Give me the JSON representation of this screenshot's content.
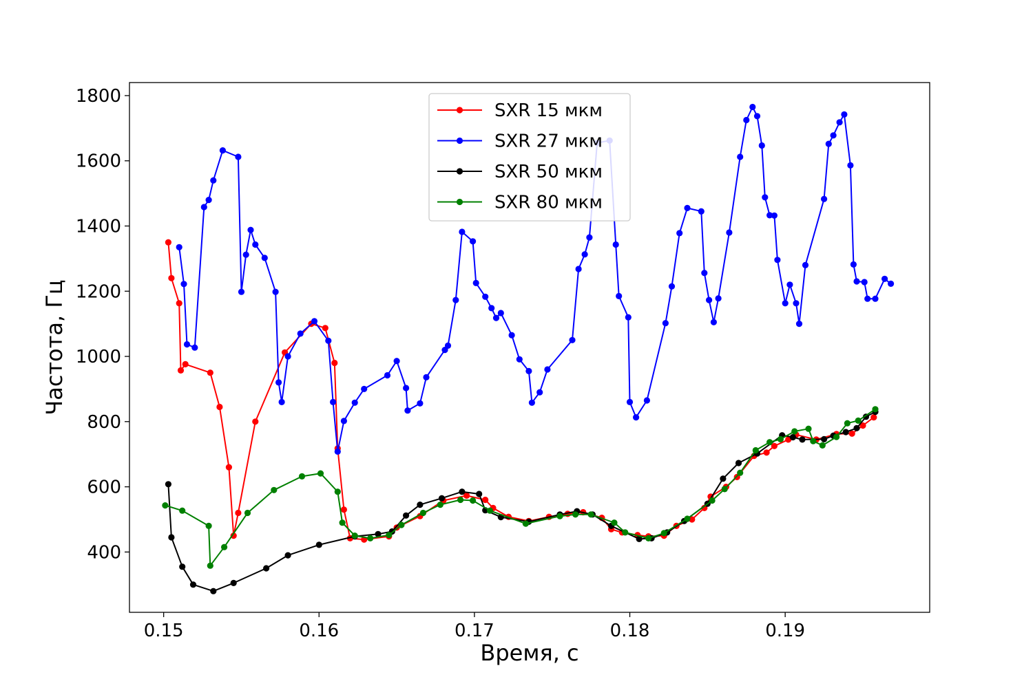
{
  "chart_data": {
    "type": "line",
    "xlabel": "Время, с",
    "ylabel": "Частота, Гц",
    "xlim": [
      0.1478,
      0.1993
    ],
    "ylim": [
      215,
      1840
    ],
    "xticks": [
      "0.15",
      "0.16",
      "0.17",
      "0.18",
      "0.19"
    ],
    "xtick_values": [
      0.15,
      0.16,
      0.17,
      0.18,
      0.19
    ],
    "yticks": [
      "400",
      "600",
      "800",
      "1000",
      "1200",
      "1400",
      "1600",
      "1800"
    ],
    "ytick_values": [
      400,
      600,
      800,
      1000,
      1200,
      1400,
      1600,
      1800
    ],
    "grid": false,
    "legend_position": "top-center",
    "series": [
      {
        "name": "SXR 15 мкм",
        "color": "#ff0000",
        "points": [
          [
            0.1503,
            1350
          ],
          [
            0.1505,
            1240
          ],
          [
            0.151,
            1163
          ],
          [
            0.1511,
            957
          ],
          [
            0.1514,
            976
          ],
          [
            0.153,
            950
          ],
          [
            0.1536,
            845
          ],
          [
            0.1542,
            660
          ],
          [
            0.1545,
            450
          ],
          [
            0.1548,
            520
          ],
          [
            0.1559,
            800
          ],
          [
            0.1578,
            1012
          ],
          [
            0.1595,
            1100
          ],
          [
            0.1604,
            1087
          ],
          [
            0.161,
            980
          ],
          [
            0.1612,
            718
          ],
          [
            0.1616,
            530
          ],
          [
            0.162,
            442
          ],
          [
            0.1629,
            438
          ],
          [
            0.1645,
            448
          ],
          [
            0.165,
            475
          ],
          [
            0.1665,
            510
          ],
          [
            0.168,
            558
          ],
          [
            0.1695,
            573
          ],
          [
            0.1707,
            560
          ],
          [
            0.1712,
            535
          ],
          [
            0.1722,
            508
          ],
          [
            0.1735,
            495
          ],
          [
            0.1748,
            508
          ],
          [
            0.176,
            517
          ],
          [
            0.177,
            522
          ],
          [
            0.1782,
            505
          ],
          [
            0.1788,
            470
          ],
          [
            0.1795,
            460
          ],
          [
            0.1805,
            452
          ],
          [
            0.1812,
            448
          ],
          [
            0.1822,
            450
          ],
          [
            0.183,
            480
          ],
          [
            0.184,
            500
          ],
          [
            0.1848,
            535
          ],
          [
            0.1852,
            570
          ],
          [
            0.1862,
            600
          ],
          [
            0.1869,
            630
          ],
          [
            0.188,
            695
          ],
          [
            0.1888,
            705
          ],
          [
            0.1893,
            725
          ],
          [
            0.1902,
            745
          ],
          [
            0.1907,
            760
          ],
          [
            0.192,
            745
          ],
          [
            0.1933,
            762
          ],
          [
            0.1943,
            763
          ],
          [
            0.195,
            788
          ],
          [
            0.1957,
            813
          ]
        ]
      },
      {
        "name": "SXR 27 мкм",
        "color": "#0000ff",
        "points": [
          [
            0.151,
            1335
          ],
          [
            0.1513,
            1222
          ],
          [
            0.1515,
            1037
          ],
          [
            0.152,
            1027
          ],
          [
            0.1526,
            1458
          ],
          [
            0.1529,
            1480
          ],
          [
            0.1532,
            1540
          ],
          [
            0.1538,
            1632
          ],
          [
            0.1548,
            1612
          ],
          [
            0.155,
            1198
          ],
          [
            0.1553,
            1312
          ],
          [
            0.1556,
            1388
          ],
          [
            0.1559,
            1343
          ],
          [
            0.1565,
            1302
          ],
          [
            0.1572,
            1198
          ],
          [
            0.1574,
            920
          ],
          [
            0.1576,
            860
          ],
          [
            0.158,
            1000
          ],
          [
            0.1588,
            1070
          ],
          [
            0.1597,
            1108
          ],
          [
            0.1606,
            1048
          ],
          [
            0.1609,
            860
          ],
          [
            0.1612,
            708
          ],
          [
            0.1616,
            802
          ],
          [
            0.1623,
            858
          ],
          [
            0.1629,
            900
          ],
          [
            0.1644,
            942
          ],
          [
            0.165,
            986
          ],
          [
            0.1656,
            903
          ],
          [
            0.1657,
            834
          ],
          [
            0.1665,
            856
          ],
          [
            0.1669,
            936
          ],
          [
            0.1681,
            1020
          ],
          [
            0.1683,
            1033
          ],
          [
            0.1688,
            1173
          ],
          [
            0.1692,
            1382
          ],
          [
            0.1699,
            1353
          ],
          [
            0.1701,
            1225
          ],
          [
            0.1707,
            1183
          ],
          [
            0.1711,
            1148
          ],
          [
            0.1714,
            1118
          ],
          [
            0.1717,
            1133
          ],
          [
            0.1724,
            1065
          ],
          [
            0.1729,
            991
          ],
          [
            0.1735,
            955
          ],
          [
            0.1737,
            858
          ],
          [
            0.1742,
            890
          ],
          [
            0.1747,
            960
          ],
          [
            0.1763,
            1050
          ],
          [
            0.1767,
            1268
          ],
          [
            0.1771,
            1313
          ],
          [
            0.1774,
            1365
          ],
          [
            0.1779,
            1655
          ],
          [
            0.1787,
            1662
          ],
          [
            0.1791,
            1343
          ],
          [
            0.1793,
            1185
          ],
          [
            0.1799,
            1120
          ],
          [
            0.18,
            860
          ],
          [
            0.1804,
            813
          ],
          [
            0.1811,
            865
          ],
          [
            0.1823,
            1102
          ],
          [
            0.1827,
            1215
          ],
          [
            0.1832,
            1378
          ],
          [
            0.1837,
            1455
          ],
          [
            0.1846,
            1445
          ],
          [
            0.1848,
            1256
          ],
          [
            0.1851,
            1173
          ],
          [
            0.1854,
            1105
          ],
          [
            0.1857,
            1178
          ],
          [
            0.1864,
            1380
          ],
          [
            0.1871,
            1612
          ],
          [
            0.1875,
            1725
          ],
          [
            0.1879,
            1765
          ],
          [
            0.1882,
            1737
          ],
          [
            0.1885,
            1647
          ],
          [
            0.1887,
            1488
          ],
          [
            0.189,
            1433
          ],
          [
            0.1893,
            1432
          ],
          [
            0.1895,
            1296
          ],
          [
            0.19,
            1163
          ],
          [
            0.1903,
            1220
          ],
          [
            0.1907,
            1163
          ],
          [
            0.1909,
            1100
          ],
          [
            0.1913,
            1280
          ],
          [
            0.1925,
            1483
          ],
          [
            0.1928,
            1652
          ],
          [
            0.1931,
            1678
          ],
          [
            0.1935,
            1718
          ],
          [
            0.1938,
            1742
          ],
          [
            0.1942,
            1586
          ],
          [
            0.1944,
            1282
          ],
          [
            0.1946,
            1230
          ],
          [
            0.1951,
            1228
          ],
          [
            0.1953,
            1177
          ],
          [
            0.1958,
            1177
          ],
          [
            0.1964,
            1238
          ],
          [
            0.1968,
            1223
          ]
        ]
      },
      {
        "name": "SXR 50 мкм",
        "color": "#000000",
        "points": [
          [
            0.1503,
            608
          ],
          [
            0.1505,
            445
          ],
          [
            0.1512,
            355
          ],
          [
            0.1519,
            300
          ],
          [
            0.1532,
            280
          ],
          [
            0.1545,
            305
          ],
          [
            0.1566,
            350
          ],
          [
            0.158,
            390
          ],
          [
            0.16,
            422
          ],
          [
            0.1623,
            448
          ],
          [
            0.1638,
            455
          ],
          [
            0.1647,
            463
          ],
          [
            0.1656,
            512
          ],
          [
            0.1665,
            545
          ],
          [
            0.1679,
            565
          ],
          [
            0.1692,
            585
          ],
          [
            0.1703,
            578
          ],
          [
            0.1707,
            528
          ],
          [
            0.1717,
            507
          ],
          [
            0.1735,
            493
          ],
          [
            0.1755,
            515
          ],
          [
            0.1766,
            525
          ],
          [
            0.1776,
            515
          ],
          [
            0.1788,
            480
          ],
          [
            0.1806,
            440
          ],
          [
            0.1814,
            442
          ],
          [
            0.1824,
            460
          ],
          [
            0.1835,
            495
          ],
          [
            0.185,
            548
          ],
          [
            0.186,
            625
          ],
          [
            0.187,
            673
          ],
          [
            0.1882,
            702
          ],
          [
            0.1898,
            758
          ],
          [
            0.1905,
            752
          ],
          [
            0.1911,
            745
          ],
          [
            0.1925,
            746
          ],
          [
            0.1931,
            757
          ],
          [
            0.1939,
            768
          ],
          [
            0.1946,
            780
          ],
          [
            0.1952,
            815
          ],
          [
            0.1958,
            830
          ]
        ]
      },
      {
        "name": "SXR 80 мкм",
        "color": "#008000",
        "points": [
          [
            0.1501,
            543
          ],
          [
            0.1512,
            527
          ],
          [
            0.1529,
            480
          ],
          [
            0.153,
            358
          ],
          [
            0.1539,
            415
          ],
          [
            0.1554,
            520
          ],
          [
            0.1571,
            590
          ],
          [
            0.1589,
            632
          ],
          [
            0.1601,
            641
          ],
          [
            0.1612,
            585
          ],
          [
            0.1615,
            490
          ],
          [
            0.1623,
            450
          ],
          [
            0.1633,
            442
          ],
          [
            0.1645,
            452
          ],
          [
            0.1653,
            483
          ],
          [
            0.1667,
            520
          ],
          [
            0.1678,
            545
          ],
          [
            0.1691,
            560
          ],
          [
            0.1699,
            558
          ],
          [
            0.171,
            527
          ],
          [
            0.1733,
            487
          ],
          [
            0.1755,
            510
          ],
          [
            0.1765,
            515
          ],
          [
            0.1775,
            515
          ],
          [
            0.179,
            490
          ],
          [
            0.1797,
            460
          ],
          [
            0.1812,
            442
          ],
          [
            0.1822,
            458
          ],
          [
            0.1837,
            502
          ],
          [
            0.1853,
            558
          ],
          [
            0.1861,
            593
          ],
          [
            0.1871,
            643
          ],
          [
            0.1881,
            712
          ],
          [
            0.189,
            737
          ],
          [
            0.1897,
            746
          ],
          [
            0.1906,
            770
          ],
          [
            0.1915,
            778
          ],
          [
            0.1918,
            740
          ],
          [
            0.1924,
            727
          ],
          [
            0.1933,
            753
          ],
          [
            0.194,
            795
          ],
          [
            0.1947,
            803
          ],
          [
            0.1958,
            838
          ]
        ]
      }
    ]
  }
}
